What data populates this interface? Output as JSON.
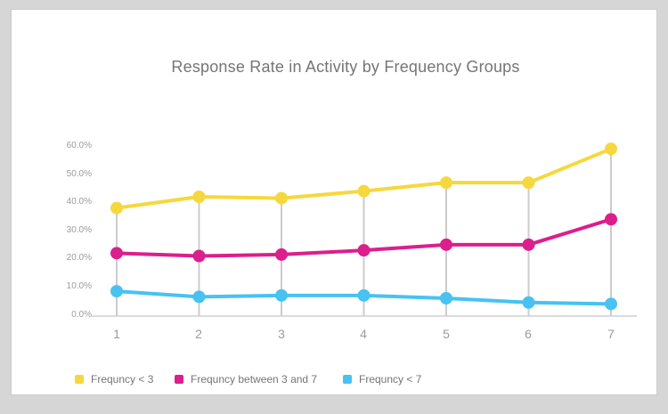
{
  "chart_data": {
    "type": "line",
    "title": "Response Rate in Activity by Frequency Groups",
    "x": [
      1,
      2,
      3,
      4,
      5,
      6,
      7
    ],
    "x_tick_labels": [
      "1",
      "2",
      "3",
      "4",
      "5",
      "6",
      "7"
    ],
    "y_tick_labels": [
      "60.0%",
      "50.0%",
      "40.0%",
      "30.0%",
      "20.0%",
      "10.0%",
      "0.0%"
    ],
    "ylabel": "",
    "xlabel": "",
    "ylim": [
      0,
      60
    ],
    "grid": "vertical stems from x-axis up to top series only, no horizontal gridlines",
    "legend_position": "bottom-left",
    "series": [
      {
        "name": "Frequncy < 3",
        "color": "#F5D83D",
        "values": [
          38,
          42,
          41.5,
          44,
          47,
          47,
          59
        ]
      },
      {
        "name": "Frequncy between 3 and 7",
        "color": "#DB1F8D",
        "values": [
          22,
          21,
          21.5,
          23,
          25,
          25,
          34
        ]
      },
      {
        "name": "Frequncy < 7",
        "color": "#47C2F2",
        "values": [
          8.5,
          6.5,
          7,
          7,
          6,
          4.5,
          4
        ]
      }
    ]
  },
  "colors": {
    "background": "#d6d6d6",
    "card": "#ffffff",
    "axis": "#cfcfcf",
    "stem": "#cccccc",
    "title_text": "#757575",
    "tick_text": "#9b9b9b",
    "legend_text": "#757575"
  }
}
